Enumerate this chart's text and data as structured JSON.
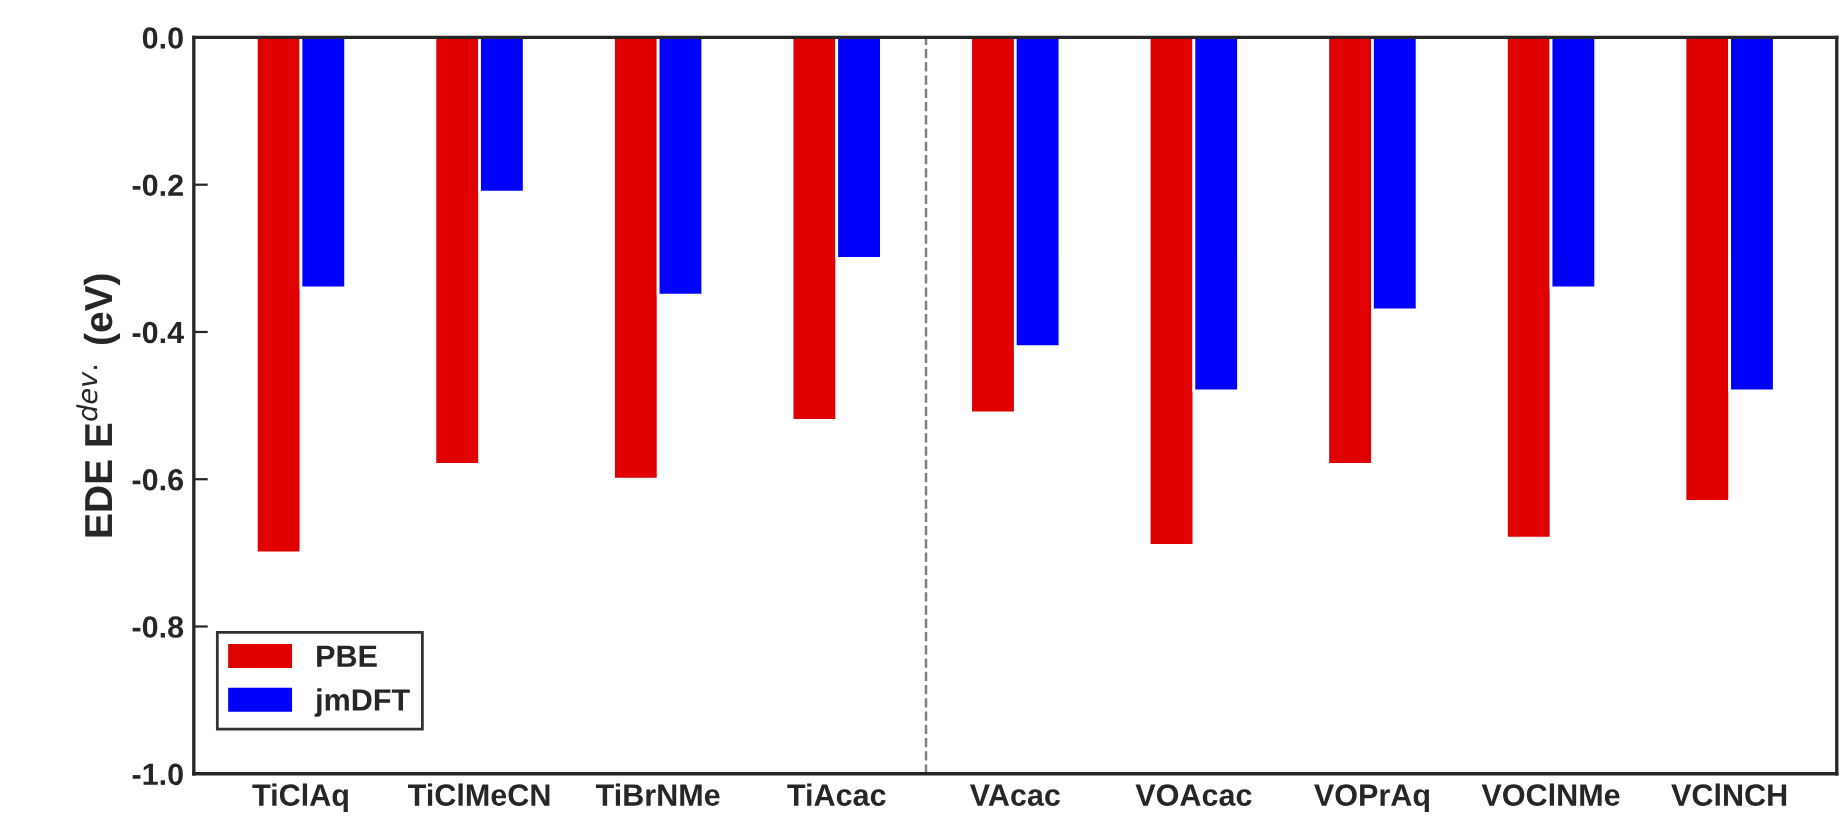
{
  "chart_data": {
    "type": "bar",
    "ylabel": "EDE E$^{dev.}$ (eV)",
    "categories": [
      "TiClAq",
      "TiClMeCN",
      "TiBrNMe",
      "TiAcac",
      "VAcac",
      "VOAcac",
      "VOPrAq",
      "VOClNMe",
      "VClNCH"
    ],
    "series": [
      {
        "name": "PBE",
        "color": "#e00000",
        "values": [
          -0.7,
          -0.58,
          -0.6,
          -0.52,
          -0.51,
          -0.69,
          -0.58,
          -0.68,
          -0.63
        ]
      },
      {
        "name": "jmDFT",
        "color": "#0000ff",
        "values": [
          -0.34,
          -0.21,
          -0.35,
          -0.3,
          -0.42,
          -0.48,
          -0.37,
          -0.34,
          -0.48
        ]
      }
    ],
    "ylim": [
      -1.0,
      0.0
    ],
    "yticks": [
      {
        "value": 0.0,
        "label": "0.0"
      },
      {
        "value": -0.2,
        "label": "-0.2"
      },
      {
        "value": -0.4,
        "label": "-0.4"
      },
      {
        "value": -0.6,
        "label": "-0.6"
      },
      {
        "value": -0.8,
        "label": "-0.8"
      },
      {
        "value": -1.0,
        "label": "-1.0"
      }
    ],
    "grid": false,
    "legend": "bottom left"
  }
}
